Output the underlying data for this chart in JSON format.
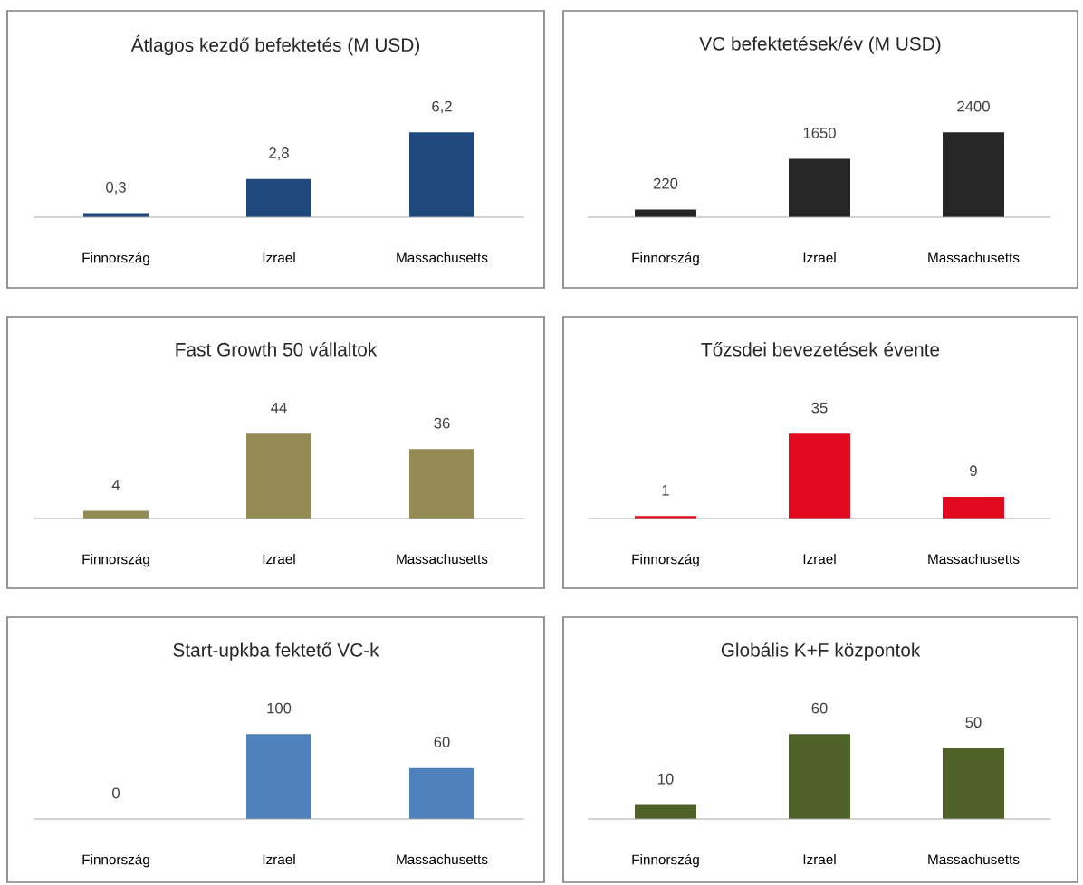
{
  "chart_data": [
    {
      "type": "bar",
      "title": "Átlagos kezdő befektetés (M USD)",
      "categories": [
        "Finnország",
        "Izrael",
        "Massachusetts"
      ],
      "values": [
        0.3,
        2.8,
        6.2
      ],
      "value_labels": [
        "0,3",
        "2,8",
        "6,2"
      ],
      "color": "#1f497d",
      "grid": false,
      "legend": false
    },
    {
      "type": "bar",
      "title": "VC befektetések/év (M USD)",
      "categories": [
        "Finnország",
        "Izrael",
        "Massachusetts"
      ],
      "values": [
        220,
        1650,
        2400
      ],
      "data_labels": true,
      "color": "#262626",
      "grid": false,
      "legend": false
    },
    {
      "type": "bar",
      "title": "Fast Growth 50 vállaltok",
      "categories": [
        "Finnország",
        "Izrael",
        "Massachusetts"
      ],
      "values": [
        4,
        44,
        36
      ],
      "data_labels": true,
      "color": "#948a54",
      "grid": false,
      "legend": false
    },
    {
      "type": "bar",
      "title": "Tőzsdei bevezetések évente",
      "categories": [
        "Finnország",
        "Izrael",
        "Massachusetts"
      ],
      "values": [
        1,
        35,
        9
      ],
      "data_labels": true,
      "color": "#e20a1e",
      "grid": false,
      "legend": false
    },
    {
      "type": "bar",
      "title": "Start-upkba fektető VC-k",
      "categories": [
        "Finnország",
        "Izrael",
        "Massachusetts"
      ],
      "values": [
        0,
        100,
        60
      ],
      "data_labels": true,
      "color": "#4f81bd",
      "grid": false,
      "legend": false
    },
    {
      "type": "bar",
      "title": "Globális K+F központok",
      "categories": [
        "Finnország",
        "Izrael",
        "Massachusetts"
      ],
      "values": [
        10,
        60,
        50
      ],
      "data_labels": true,
      "color": "#4f6228",
      "grid": false,
      "legend": false
    }
  ]
}
